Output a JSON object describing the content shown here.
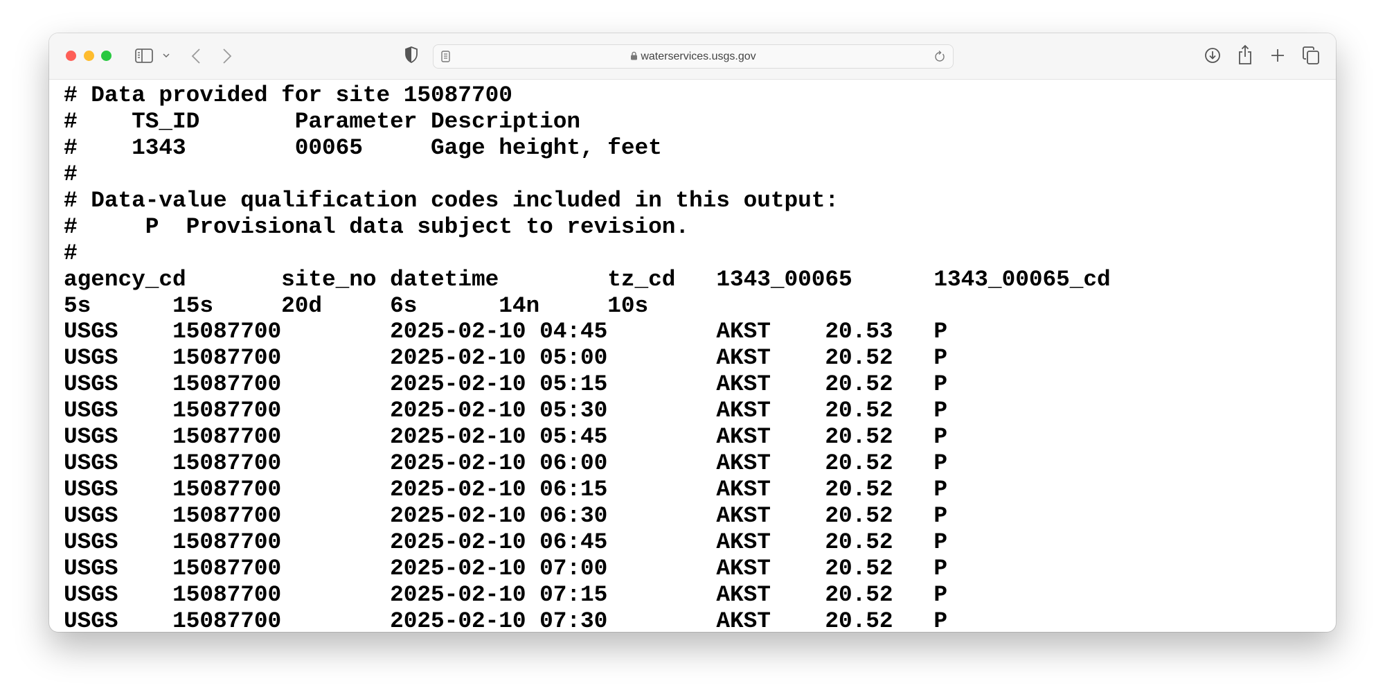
{
  "browser": {
    "url": "waterservices.usgs.gov",
    "traffic_lights": {
      "close": "#fe5f57",
      "minimize": "#febc2e",
      "zoom": "#28c840"
    }
  },
  "document": {
    "lines": [
      "# Data provided for site 15087700",
      "#    TS_ID       Parameter Description",
      "#    1343        00065     Gage height, feet",
      "#",
      "# Data-value qualification codes included in this output:",
      "#     P  Provisional data subject to revision.",
      "#",
      "agency_cd\tsite_no\tdatetime\ttz_cd\t1343_00065\t1343_00065_cd",
      "5s\t15s\t20d\t6s\t14n\t10s",
      "USGS\t15087700\t2025-02-10 04:45\tAKST\t20.53\tP",
      "USGS\t15087700\t2025-02-10 05:00\tAKST\t20.52\tP",
      "USGS\t15087700\t2025-02-10 05:15\tAKST\t20.52\tP",
      "USGS\t15087700\t2025-02-10 05:30\tAKST\t20.52\tP",
      "USGS\t15087700\t2025-02-10 05:45\tAKST\t20.52\tP",
      "USGS\t15087700\t2025-02-10 06:00\tAKST\t20.52\tP",
      "USGS\t15087700\t2025-02-10 06:15\tAKST\t20.52\tP",
      "USGS\t15087700\t2025-02-10 06:30\tAKST\t20.52\tP",
      "USGS\t15087700\t2025-02-10 06:45\tAKST\t20.52\tP",
      "USGS\t15087700\t2025-02-10 07:00\tAKST\t20.52\tP",
      "USGS\t15087700\t2025-02-10 07:15\tAKST\t20.52\tP",
      "USGS\t15087700\t2025-02-10 07:30\tAKST\t20.52\tP"
    ]
  }
}
